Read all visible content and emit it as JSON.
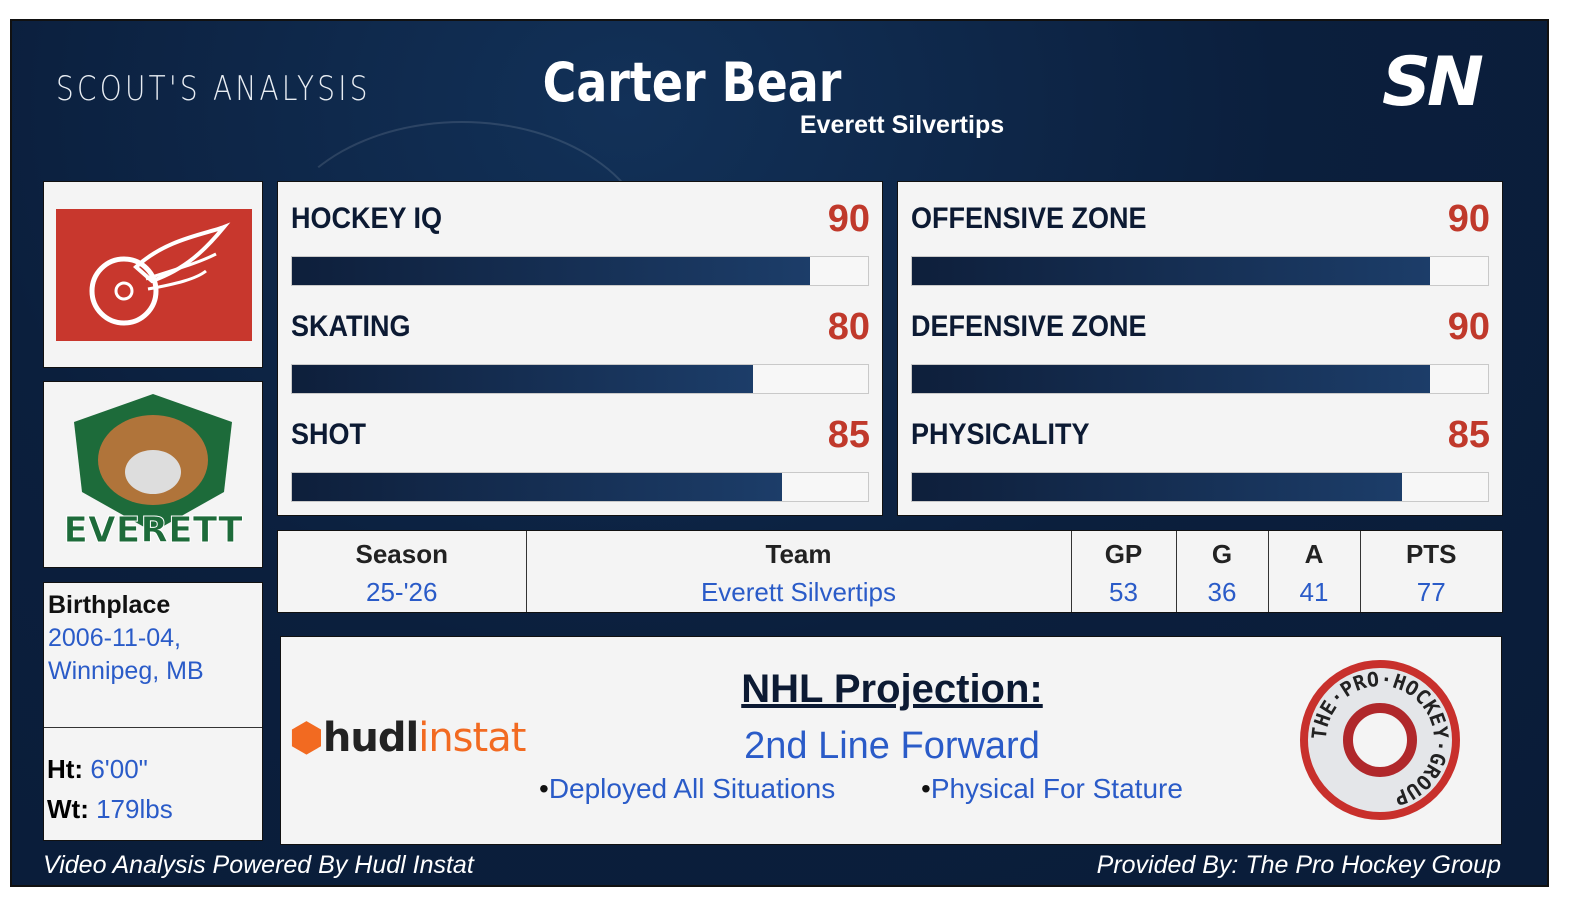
{
  "header": {
    "section_title": "SCOUT'S ANALYSIS",
    "player_name": "Carter Bear",
    "player_team": "Everett Silvertips",
    "brand_logo": "SN"
  },
  "logos": {
    "nhl_team": "detroit-red-wings-logo",
    "junior_team": "everett-silvertips-logo",
    "junior_team_text": "EVERETT"
  },
  "bio": {
    "birthplace_label": "Birthplace",
    "birth_date": "2006-11-04,",
    "birth_city": "Winnipeg, MB",
    "height_label": "Ht:",
    "height": "6'00\"",
    "weight_label": "Wt:",
    "weight": "179lbs"
  },
  "ratings_left": [
    {
      "label": "HOCKEY IQ",
      "value": 90
    },
    {
      "label": "SKATING",
      "value": 80
    },
    {
      "label": "SHOT",
      "value": 85
    }
  ],
  "ratings_right": [
    {
      "label": "OFFENSIVE ZONE",
      "value": 90
    },
    {
      "label": "DEFENSIVE ZONE",
      "value": 90
    },
    {
      "label": "PHYSICALITY",
      "value": 85
    }
  ],
  "stats_table": {
    "headers": [
      "Season",
      "Team",
      "GP",
      "G",
      "A",
      "PTS"
    ],
    "row": [
      "25-'26",
      "Everett Silvertips",
      "53",
      "36",
      "41",
      "77"
    ]
  },
  "projection": {
    "title": "NHL Projection:",
    "role": "2nd Line Forward",
    "bullets": [
      "Deployed All Situations",
      "Physical For Stature"
    ],
    "hudl_logo_a": "hudl",
    "hudl_logo_b": "instat",
    "pro_group_logo": "THE·PRO·HOCKEY·GROUP"
  },
  "footer": {
    "left": "Video Analysis Powered By Hudl Instat",
    "right": "Provided By: The Pro Hockey Group"
  },
  "colors": {
    "navy": "#0b1f3d",
    "accent_red": "#c0392b",
    "link_blue": "#2a5bc8"
  }
}
